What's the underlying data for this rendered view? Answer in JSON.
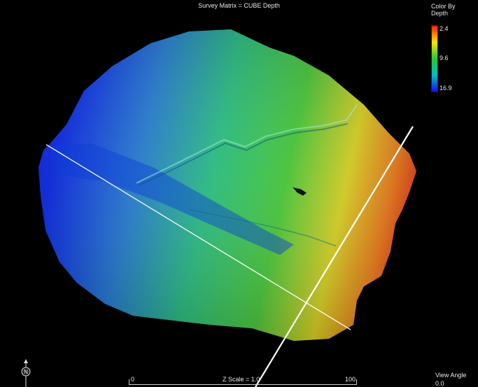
{
  "header": {
    "title": "Survey Matrix = CUBE Depth"
  },
  "legend": {
    "title_line1": "Color By",
    "title_line2": "Depth",
    "min": "2.4",
    "mid": "9.6",
    "max": "16.9",
    "colors": [
      "#ff1a00",
      "#ffe400",
      "#22cc33",
      "#00c0c0",
      "#1010ff"
    ]
  },
  "scale": {
    "label": "Z Scale = 1.0",
    "start": "0",
    "end": "100"
  },
  "view_angle": {
    "label": "View Angle",
    "value": "0.0"
  },
  "compass": {
    "icon": "north-arrow-icon",
    "letter": "N"
  }
}
